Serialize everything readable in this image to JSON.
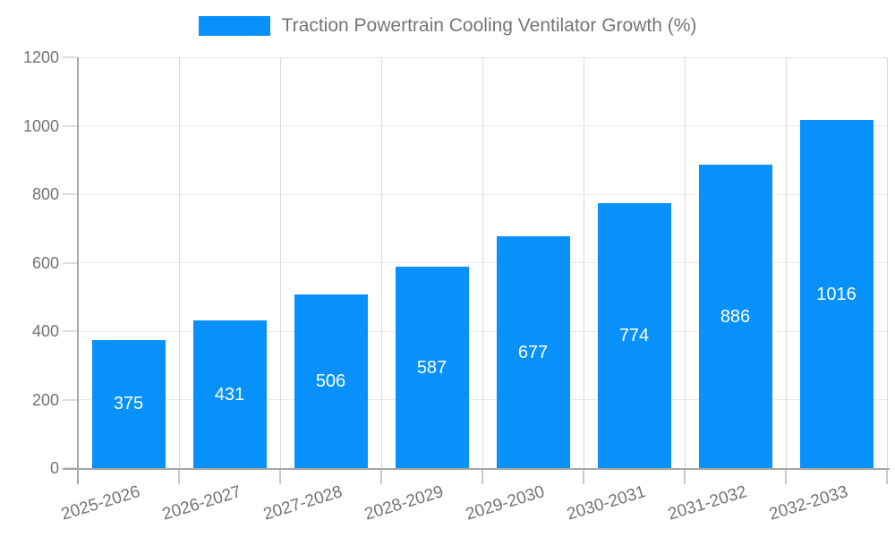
{
  "legend": {
    "swatch_icon": "legend-color-swatch"
  },
  "chart_data": {
    "type": "bar",
    "title": "Traction Powertrain Cooling Ventilator Growth (%)",
    "categories": [
      "2025-2026",
      "2026-2027",
      "2027-2028",
      "2028-2029",
      "2029-2030",
      "2030-2031",
      "2031-2032",
      "2032-2033"
    ],
    "values": [
      375,
      431,
      506,
      587,
      677,
      774,
      886,
      1016
    ],
    "value_labels": [
      "375",
      "431",
      "506",
      "587",
      "677",
      "774",
      "886",
      "1016"
    ],
    "xlabel": "",
    "ylabel": "",
    "ylim": [
      0,
      1200
    ],
    "yticks": [
      0,
      200,
      400,
      600,
      800,
      1000,
      1200
    ],
    "grid": true,
    "legend_position": "top-center",
    "bar_color": "#0991fb",
    "value_label_color": "#ffffff",
    "tick_text_color": "#737373",
    "title_text_color": "#757575",
    "gridline_color": "#e8e8e8",
    "axis_line_color": "#a6a6a6",
    "background_color": "#ffffff"
  }
}
